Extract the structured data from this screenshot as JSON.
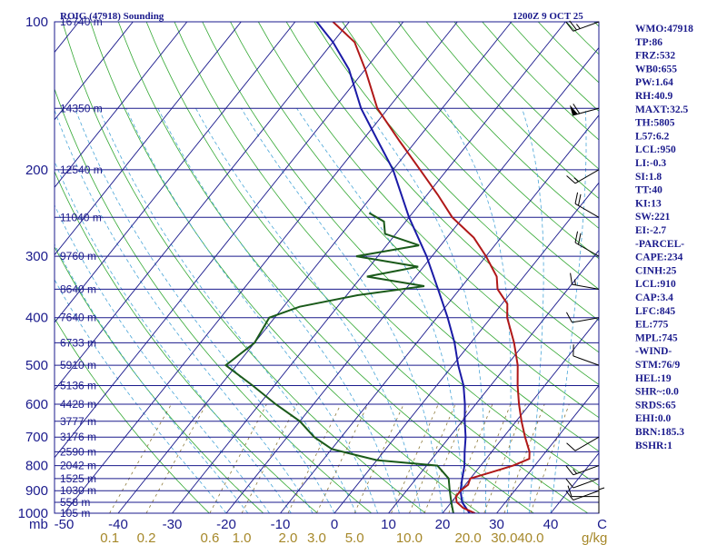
{
  "chart_data": {
    "type": "skew-t",
    "title_left": "ROIG (47918) Sounding",
    "title_right": "1200Z  9 OCT 25",
    "pressure_unit": "mb",
    "mixing_ratio_unit": "g/kg",
    "pressure_ticks": [
      "100",
      "200",
      "300",
      "400",
      "500",
      "600",
      "700",
      "800",
      "900",
      "1000"
    ],
    "temperature_ticks": [
      "-50",
      "-40",
      "-30",
      "-20",
      "-10",
      "0",
      "10",
      "20",
      "30",
      "40",
      "C"
    ],
    "mixing_ratio_ticks": [
      "0.1",
      "0.2",
      "0.6",
      "1.0",
      "2.0",
      "3.0",
      "5.0",
      "10.0",
      "20.0",
      "30.0",
      "40.0"
    ],
    "height_labels": [
      {
        "p": 100,
        "label": "16740 m"
      },
      {
        "p": 150,
        "label": "14350 m"
      },
      {
        "p": 200,
        "label": "12540 m"
      },
      {
        "p": 250,
        "label": "11040 m"
      },
      {
        "p": 300,
        "label": "9760 m"
      },
      {
        "p": 350,
        "label": "8640 m"
      },
      {
        "p": 400,
        "label": "7640 m"
      },
      {
        "p": 450,
        "label": "6733 m"
      },
      {
        "p": 500,
        "label": "5910 m"
      },
      {
        "p": 550,
        "label": "5136 m"
      },
      {
        "p": 600,
        "label": "4428 m"
      },
      {
        "p": 650,
        "label": "3777 m"
      },
      {
        "p": 700,
        "label": "3176 m"
      },
      {
        "p": 750,
        "label": "2590 m"
      },
      {
        "p": 800,
        "label": "2042 m"
      },
      {
        "p": 850,
        "label": "1525 m"
      },
      {
        "p": 900,
        "label": "1030 m"
      },
      {
        "p": 950,
        "label": "558 m"
      },
      {
        "p": 1000,
        "label": "105 m"
      }
    ],
    "temperature_profile": [
      {
        "p": 1000,
        "t": 26
      },
      {
        "p": 975,
        "t": 23
      },
      {
        "p": 950,
        "t": 21
      },
      {
        "p": 925,
        "t": 20
      },
      {
        "p": 900,
        "t": 20
      },
      {
        "p": 875,
        "t": 20.5
      },
      {
        "p": 850,
        "t": 20
      },
      {
        "p": 825,
        "t": 23
      },
      {
        "p": 800,
        "t": 26
      },
      {
        "p": 775,
        "t": 28
      },
      {
        "p": 750,
        "t": 27
      },
      {
        "p": 700,
        "t": 24
      },
      {
        "p": 650,
        "t": 21
      },
      {
        "p": 600,
        "t": 18
      },
      {
        "p": 550,
        "t": 15
      },
      {
        "p": 500,
        "t": 12
      },
      {
        "p": 450,
        "t": 8
      },
      {
        "p": 400,
        "t": 3
      },
      {
        "p": 375,
        "t": 1
      },
      {
        "p": 350,
        "t": -3
      },
      {
        "p": 330,
        "t": -5
      },
      {
        "p": 300,
        "t": -10
      },
      {
        "p": 275,
        "t": -15
      },
      {
        "p": 250,
        "t": -22
      },
      {
        "p": 225,
        "t": -28
      },
      {
        "p": 200,
        "t": -35
      },
      {
        "p": 175,
        "t": -43
      },
      {
        "p": 150,
        "t": -52
      },
      {
        "p": 125,
        "t": -60
      },
      {
        "p": 110,
        "t": -66
      },
      {
        "p": 100,
        "t": -73
      }
    ],
    "dewpoint_profile": [
      {
        "p": 1000,
        "t": 22
      },
      {
        "p": 950,
        "t": 20
      },
      {
        "p": 900,
        "t": 18
      },
      {
        "p": 850,
        "t": 16
      },
      {
        "p": 800,
        "t": 12
      },
      {
        "p": 780,
        "t": 0
      },
      {
        "p": 760,
        "t": -5
      },
      {
        "p": 740,
        "t": -10
      },
      {
        "p": 700,
        "t": -15
      },
      {
        "p": 650,
        "t": -20
      },
      {
        "p": 600,
        "t": -27
      },
      {
        "p": 550,
        "t": -34
      },
      {
        "p": 500,
        "t": -42
      },
      {
        "p": 450,
        "t": -40
      },
      {
        "p": 400,
        "t": -41
      },
      {
        "p": 380,
        "t": -37
      },
      {
        "p": 360,
        "t": -28
      },
      {
        "p": 345,
        "t": -17
      },
      {
        "p": 330,
        "t": -29
      },
      {
        "p": 315,
        "t": -21
      },
      {
        "p": 300,
        "t": -34
      },
      {
        "p": 285,
        "t": -24
      },
      {
        "p": 270,
        "t": -32
      },
      {
        "p": 255,
        "t": -34
      },
      {
        "p": 245,
        "t": -38
      }
    ],
    "parcel_path": [
      {
        "p": 1000,
        "t": 25
      },
      {
        "p": 950,
        "t": 22
      },
      {
        "p": 900,
        "t": 20
      },
      {
        "p": 850,
        "t": 18.5
      },
      {
        "p": 800,
        "t": 17
      },
      {
        "p": 750,
        "t": 15
      },
      {
        "p": 700,
        "t": 13
      },
      {
        "p": 650,
        "t": 10.5
      },
      {
        "p": 600,
        "t": 8
      },
      {
        "p": 550,
        "t": 5
      },
      {
        "p": 500,
        "t": 1
      },
      {
        "p": 450,
        "t": -3
      },
      {
        "p": 400,
        "t": -8
      },
      {
        "p": 350,
        "t": -14
      },
      {
        "p": 300,
        "t": -21
      },
      {
        "p": 250,
        "t": -30
      },
      {
        "p": 200,
        "t": -40
      },
      {
        "p": 175,
        "t": -47
      },
      {
        "p": 150,
        "t": -55
      },
      {
        "p": 125,
        "t": -63
      },
      {
        "p": 110,
        "t": -70
      },
      {
        "p": 100,
        "t": -76
      }
    ],
    "wind_barbs": [
      {
        "p": 100,
        "dir": 250,
        "spd": 25
      },
      {
        "p": 150,
        "dir": 255,
        "spd": 60
      },
      {
        "p": 200,
        "dir": 240,
        "spd": 15
      },
      {
        "p": 250,
        "dir": 300,
        "spd": 20
      },
      {
        "p": 300,
        "dir": 300,
        "spd": 20
      },
      {
        "p": 350,
        "dir": 280,
        "spd": 15
      },
      {
        "p": 400,
        "dir": 260,
        "spd": 10
      },
      {
        "p": 500,
        "dir": 290,
        "spd": 10
      },
      {
        "p": 700,
        "dir": 240,
        "spd": 10
      },
      {
        "p": 800,
        "dir": 250,
        "spd": 15
      },
      {
        "p": 850,
        "dir": 250,
        "spd": 10
      },
      {
        "p": 900,
        "dir": 250,
        "spd": 10
      },
      {
        "p": 925,
        "dir": 270,
        "spd": 10
      },
      {
        "p": 1000,
        "dir": 360,
        "spd": 5
      }
    ],
    "stats": [
      "WMO:47918",
      "TP:86",
      "FRZ:532",
      "WB0:655",
      "PW:1.64",
      "RH:40.9",
      "MAXT:32.5",
      "TH:5805",
      "L57:6.2",
      "LCL:950",
      "LI:-0.3",
      "SI:1.8",
      "TT:40",
      "KI:13",
      "SW:221",
      "EI:-2.7",
      "-PARCEL-",
      "CAPE:234",
      "CINH:25",
      "LCL:910",
      "CAP:3.4",
      "LFC:845",
      "EL:775",
      "MPL:745",
      "-WIND-",
      "STM:76/9",
      "HEL:19",
      "SHR~:0.0",
      "SRDS:65",
      "EHI:0.0",
      "BRN:185.3",
      "BSHR:1"
    ],
    "colors": {
      "frame": "#1a1a8c",
      "isobar": "#1a1a8c",
      "isotherm": "#1a1a8c",
      "dry_adiabat": "#33a833",
      "moist_adiabat": "#4aa6d8",
      "mixing_ratio": "#8c7a3a",
      "temperature": "#b01818",
      "dewpoint": "#1a5a1a",
      "parcel": "#1a1aa6",
      "mixing_label": "#a6882a"
    }
  }
}
